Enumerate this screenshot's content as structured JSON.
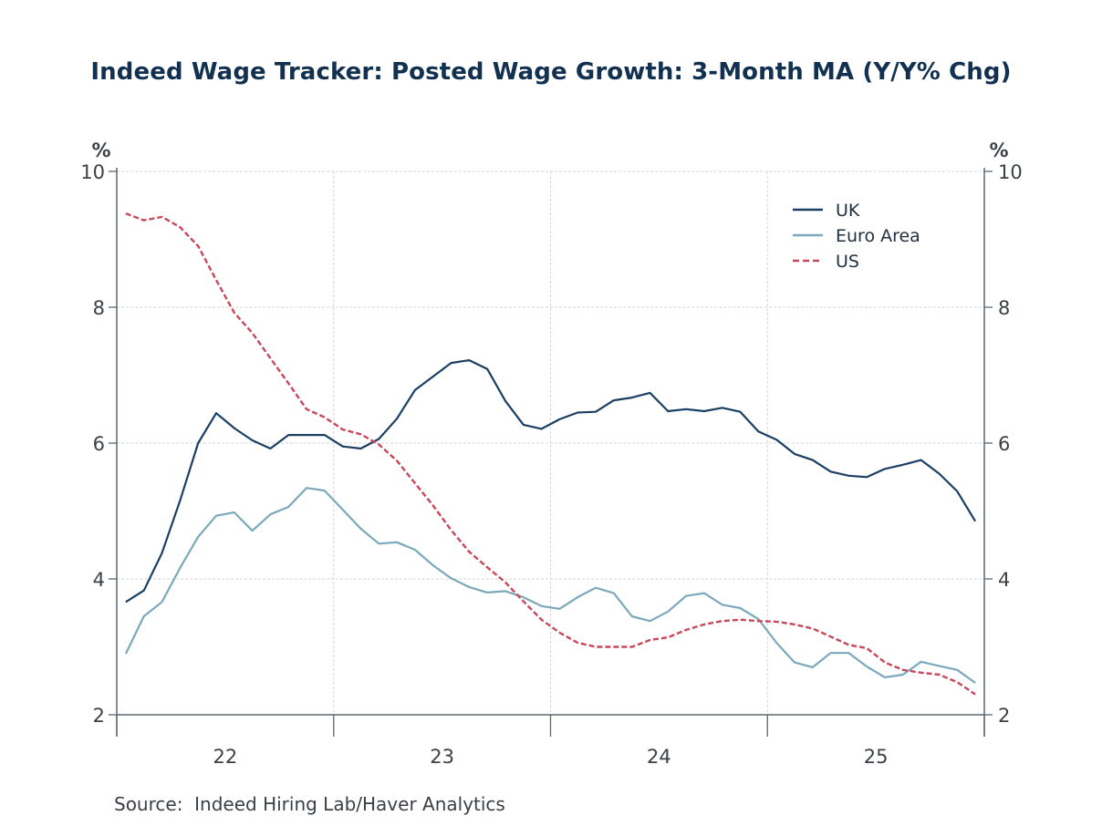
{
  "title": "Indeed Wage Tracker: Posted Wage Growth: 3-Month MA (Y/Y% Chg)",
  "source": "Source:  Indeed Hiring Lab/Haver Analytics",
  "chart_data": {
    "type": "line",
    "title": "Indeed Wage Tracker: Posted Wage Growth: 3-Month MA (Y/Y% Chg)",
    "xlabel": "",
    "ylabel": "%",
    "ylabel_right": "%",
    "ylim": [
      2,
      10
    ],
    "yticks": [
      2,
      4,
      6,
      8,
      10
    ],
    "ytick_labels": [
      "2",
      "4",
      "6",
      "8",
      "10"
    ],
    "x_start": "2022-01",
    "x_end": "2025-12",
    "x_frequency": "monthly",
    "xtick_labels": [
      "22",
      "23",
      "24",
      "25"
    ],
    "grid": true,
    "legend_position": "top-right",
    "x": [
      "2022-01",
      "2022-02",
      "2022-03",
      "2022-04",
      "2022-05",
      "2022-06",
      "2022-07",
      "2022-08",
      "2022-09",
      "2022-10",
      "2022-11",
      "2022-12",
      "2023-01",
      "2023-02",
      "2023-03",
      "2023-04",
      "2023-05",
      "2023-06",
      "2023-07",
      "2023-08",
      "2023-09",
      "2023-10",
      "2023-11",
      "2023-12",
      "2024-01",
      "2024-02",
      "2024-03",
      "2024-04",
      "2024-05",
      "2024-06",
      "2024-07",
      "2024-08",
      "2024-09",
      "2024-10",
      "2024-11",
      "2024-12",
      "2025-01",
      "2025-02",
      "2025-03",
      "2025-04",
      "2025-05",
      "2025-06",
      "2025-07",
      "2025-08",
      "2025-09",
      "2025-10",
      "2025-11",
      "2025-12"
    ],
    "series": [
      {
        "name": "UK",
        "color": "#1a3f63",
        "style": "solid",
        "values": [
          3.66,
          3.83,
          4.38,
          5.15,
          6.0,
          6.44,
          6.22,
          6.04,
          5.92,
          6.12,
          6.12,
          6.12,
          5.95,
          5.92,
          6.06,
          6.36,
          6.78,
          6.98,
          7.18,
          7.22,
          7.09,
          6.62,
          6.27,
          6.21,
          6.35,
          6.45,
          6.46,
          6.63,
          6.67,
          6.74,
          6.47,
          6.5,
          6.47,
          6.52,
          6.46,
          6.17,
          6.05,
          5.84,
          5.75,
          5.58,
          5.52,
          5.5,
          5.62,
          5.68,
          5.75,
          5.55,
          5.29,
          4.85
        ]
      },
      {
        "name": "Euro Area",
        "color": "#7aa9bb",
        "style": "solid",
        "values": [
          2.9,
          3.45,
          3.66,
          4.16,
          4.62,
          4.93,
          4.98,
          4.71,
          4.95,
          5.06,
          5.34,
          5.3,
          5.02,
          4.74,
          4.52,
          4.54,
          4.43,
          4.2,
          4.01,
          3.88,
          3.8,
          3.82,
          3.73,
          3.6,
          3.56,
          3.73,
          3.87,
          3.79,
          3.45,
          3.38,
          3.52,
          3.75,
          3.79,
          3.62,
          3.57,
          3.41,
          3.06,
          2.77,
          2.7,
          2.91,
          2.91,
          2.71,
          2.55,
          2.59,
          2.78,
          2.72,
          2.66,
          2.47
        ]
      },
      {
        "name": "US",
        "color": "#c8475a",
        "style": "dashed",
        "values": [
          9.38,
          9.28,
          9.33,
          9.18,
          8.9,
          8.4,
          7.92,
          7.62,
          7.25,
          6.88,
          6.5,
          6.38,
          6.2,
          6.13,
          5.98,
          5.74,
          5.41,
          5.08,
          4.72,
          4.4,
          4.17,
          3.95,
          3.67,
          3.4,
          3.21,
          3.06,
          3.0,
          3.0,
          3.0,
          3.1,
          3.14,
          3.25,
          3.33,
          3.38,
          3.4,
          3.38,
          3.37,
          3.33,
          3.27,
          3.15,
          3.03,
          2.98,
          2.77,
          2.66,
          2.62,
          2.59,
          2.48,
          2.3
        ]
      }
    ]
  },
  "colors": {
    "title": "#12304f",
    "axis": "#5b6670",
    "grid": "#d3d6da",
    "text": "#3c4147"
  }
}
